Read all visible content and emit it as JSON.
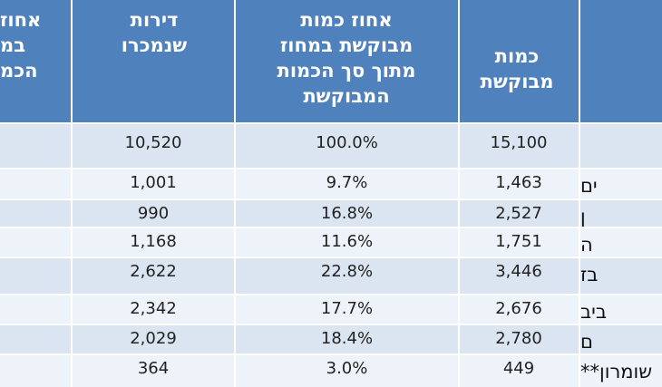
{
  "table": {
    "headers": {
      "pct_of_sold": "אחוז\nבמ\nהכמ",
      "sold": "דירות\nשנמכרו",
      "pct_requested": "אחוז כמות\nמבוקשת במחוז\nמתוך סך הכמות\nהמבוקשת",
      "requested": "כמות\nמבוקשת"
    },
    "rows": [
      {
        "label": "",
        "sold": "10,520",
        "pct": "100.0%",
        "requested": "15,100"
      },
      {
        "label": "ים",
        "sold": "1,001",
        "pct": "9.7%",
        "requested": "1,463"
      },
      {
        "label": "ן",
        "sold": "990",
        "pct": "16.8%",
        "requested": "2,527"
      },
      {
        "label": "ה",
        "sold": "1,168",
        "pct": "11.6%",
        "requested": "1,751"
      },
      {
        "label": "בז",
        "sold": "2,622",
        "pct": "22.8%",
        "requested": "3,446"
      },
      {
        "label": "ביב",
        "sold": "2,342",
        "pct": "17.7%",
        "requested": "2,676"
      },
      {
        "label": "ם",
        "sold": "2,029",
        "pct": "18.4%",
        "requested": "2,780"
      },
      {
        "label": "שומרון**",
        "sold": "364",
        "pct": "3.0%",
        "requested": "449"
      }
    ]
  },
  "colors": {
    "header_bg": "#4f81bd",
    "row_even": "#dbe5f1",
    "row_odd": "#eef3f9",
    "grid": "#ffffff"
  }
}
